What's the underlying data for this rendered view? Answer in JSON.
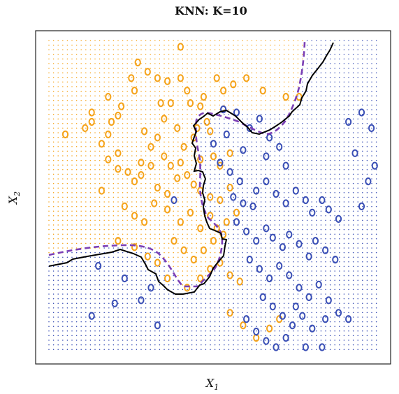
{
  "chart_data": {
    "type": "scatter",
    "title": "KNN: K=10",
    "xlabel": "X",
    "xlabel_subscript": "1",
    "ylabel": "X",
    "ylabel_subscript": "2",
    "xlim": [
      0,
      1
    ],
    "ylim": [
      0,
      1
    ],
    "grid": false,
    "colors": {
      "orange": "#f5a31a",
      "blue": "#3a4fb5",
      "boundary": "#000000",
      "bayes_boundary": "#7b3fb5"
    },
    "series": [
      {
        "color": "orange",
        "points": [
          [
            0.05,
            0.7
          ],
          [
            0.11,
            0.72
          ],
          [
            0.13,
            0.74
          ],
          [
            0.13,
            0.77
          ],
          [
            0.18,
            0.7
          ],
          [
            0.19,
            0.74
          ],
          [
            0.21,
            0.76
          ],
          [
            0.22,
            0.79
          ],
          [
            0.18,
            0.82
          ],
          [
            0.26,
            0.84
          ],
          [
            0.25,
            0.88
          ],
          [
            0.3,
            0.9
          ],
          [
            0.33,
            0.88
          ],
          [
            0.27,
            0.93
          ],
          [
            0.4,
            0.98
          ],
          [
            0.36,
            0.87
          ],
          [
            0.34,
            0.8
          ],
          [
            0.35,
            0.75
          ],
          [
            0.39,
            0.72
          ],
          [
            0.42,
            0.84
          ],
          [
            0.43,
            0.8
          ],
          [
            0.46,
            0.79
          ],
          [
            0.4,
            0.88
          ],
          [
            0.33,
            0.69
          ],
          [
            0.35,
            0.63
          ],
          [
            0.37,
            0.6
          ],
          [
            0.41,
            0.66
          ],
          [
            0.45,
            0.72
          ],
          [
            0.48,
            0.74
          ],
          [
            0.49,
            0.71
          ],
          [
            0.47,
            0.82
          ],
          [
            0.51,
            0.88
          ],
          [
            0.53,
            0.84
          ],
          [
            0.56,
            0.86
          ],
          [
            0.6,
            0.88
          ],
          [
            0.65,
            0.84
          ],
          [
            0.72,
            0.82
          ],
          [
            0.76,
            0.82
          ],
          [
            0.16,
            0.67
          ],
          [
            0.18,
            0.62
          ],
          [
            0.21,
            0.59
          ],
          [
            0.24,
            0.58
          ],
          [
            0.26,
            0.55
          ],
          [
            0.28,
            0.57
          ],
          [
            0.31,
            0.6
          ],
          [
            0.33,
            0.53
          ],
          [
            0.36,
            0.51
          ],
          [
            0.39,
            0.56
          ],
          [
            0.42,
            0.57
          ],
          [
            0.44,
            0.54
          ],
          [
            0.46,
            0.52
          ],
          [
            0.49,
            0.5
          ],
          [
            0.52,
            0.49
          ],
          [
            0.55,
            0.53
          ],
          [
            0.16,
            0.52
          ],
          [
            0.23,
            0.47
          ],
          [
            0.26,
            0.44
          ],
          [
            0.29,
            0.42
          ],
          [
            0.32,
            0.48
          ],
          [
            0.36,
            0.46
          ],
          [
            0.4,
            0.42
          ],
          [
            0.43,
            0.45
          ],
          [
            0.46,
            0.4
          ],
          [
            0.49,
            0.44
          ],
          [
            0.51,
            0.4
          ],
          [
            0.54,
            0.42
          ],
          [
            0.57,
            0.45
          ],
          [
            0.21,
            0.36
          ],
          [
            0.26,
            0.34
          ],
          [
            0.3,
            0.31
          ],
          [
            0.33,
            0.29
          ],
          [
            0.38,
            0.36
          ],
          [
            0.41,
            0.33
          ],
          [
            0.44,
            0.3
          ],
          [
            0.47,
            0.33
          ],
          [
            0.5,
            0.36
          ],
          [
            0.53,
            0.38
          ],
          [
            0.36,
            0.24
          ],
          [
            0.42,
            0.21
          ],
          [
            0.46,
            0.24
          ],
          [
            0.49,
            0.27
          ],
          [
            0.52,
            0.29
          ],
          [
            0.55,
            0.25
          ],
          [
            0.58,
            0.23
          ],
          [
            0.28,
            0.61
          ],
          [
            0.21,
            0.64
          ],
          [
            0.31,
            0.66
          ],
          [
            0.29,
            0.71
          ],
          [
            0.37,
            0.8
          ],
          [
            0.44,
            0.69
          ],
          [
            0.5,
            0.63
          ],
          [
            0.52,
            0.6
          ],
          [
            0.46,
            0.62
          ],
          [
            0.55,
            0.64
          ],
          [
            0.4,
            0.61
          ],
          [
            0.55,
            0.13
          ],
          [
            0.59,
            0.09
          ],
          [
            0.63,
            0.05
          ],
          [
            0.67,
            0.08
          ],
          [
            0.7,
            0.11
          ]
        ]
      },
      {
        "color": "blue",
        "points": [
          [
            0.5,
            0.67
          ],
          [
            0.52,
            0.61
          ],
          [
            0.55,
            0.58
          ],
          [
            0.58,
            0.55
          ],
          [
            0.56,
            0.5
          ],
          [
            0.59,
            0.48
          ],
          [
            0.62,
            0.47
          ],
          [
            0.63,
            0.52
          ],
          [
            0.66,
            0.55
          ],
          [
            0.69,
            0.51
          ],
          [
            0.72,
            0.48
          ],
          [
            0.75,
            0.52
          ],
          [
            0.78,
            0.49
          ],
          [
            0.8,
            0.45
          ],
          [
            0.83,
            0.49
          ],
          [
            0.85,
            0.46
          ],
          [
            0.88,
            0.43
          ],
          [
            0.57,
            0.42
          ],
          [
            0.6,
            0.39
          ],
          [
            0.63,
            0.36
          ],
          [
            0.66,
            0.4
          ],
          [
            0.68,
            0.37
          ],
          [
            0.71,
            0.34
          ],
          [
            0.73,
            0.38
          ],
          [
            0.76,
            0.35
          ],
          [
            0.79,
            0.31
          ],
          [
            0.81,
            0.36
          ],
          [
            0.84,
            0.33
          ],
          [
            0.87,
            0.3
          ],
          [
            0.61,
            0.3
          ],
          [
            0.64,
            0.27
          ],
          [
            0.67,
            0.24
          ],
          [
            0.7,
            0.28
          ],
          [
            0.73,
            0.25
          ],
          [
            0.76,
            0.21
          ],
          [
            0.79,
            0.18
          ],
          [
            0.82,
            0.22
          ],
          [
            0.85,
            0.17
          ],
          [
            0.88,
            0.13
          ],
          [
            0.91,
            0.11
          ],
          [
            0.65,
            0.18
          ],
          [
            0.68,
            0.15
          ],
          [
            0.71,
            0.12
          ],
          [
            0.74,
            0.09
          ],
          [
            0.77,
            0.12
          ],
          [
            0.8,
            0.08
          ],
          [
            0.84,
            0.11
          ],
          [
            0.6,
            0.11
          ],
          [
            0.63,
            0.07
          ],
          [
            0.66,
            0.04
          ],
          [
            0.69,
            0.02
          ],
          [
            0.72,
            0.05
          ],
          [
            0.75,
            0.15
          ],
          [
            0.78,
            0.02
          ],
          [
            0.83,
            0.02
          ],
          [
            0.53,
            0.78
          ],
          [
            0.57,
            0.77
          ],
          [
            0.61,
            0.72
          ],
          [
            0.64,
            0.75
          ],
          [
            0.67,
            0.69
          ],
          [
            0.7,
            0.66
          ],
          [
            0.66,
            0.63
          ],
          [
            0.72,
            0.6
          ],
          [
            0.54,
            0.7
          ],
          [
            0.59,
            0.65
          ],
          [
            0.95,
            0.77
          ],
          [
            0.98,
            0.72
          ],
          [
            0.93,
            0.64
          ],
          [
            0.97,
            0.55
          ],
          [
            0.99,
            0.6
          ],
          [
            0.91,
            0.74
          ],
          [
            0.95,
            0.47
          ],
          [
            0.38,
            0.49
          ],
          [
            0.15,
            0.28
          ],
          [
            0.23,
            0.24
          ],
          [
            0.31,
            0.21
          ],
          [
            0.2,
            0.16
          ],
          [
            0.13,
            0.12
          ],
          [
            0.28,
            0.17
          ],
          [
            0.33,
            0.09
          ]
        ]
      }
    ]
  }
}
